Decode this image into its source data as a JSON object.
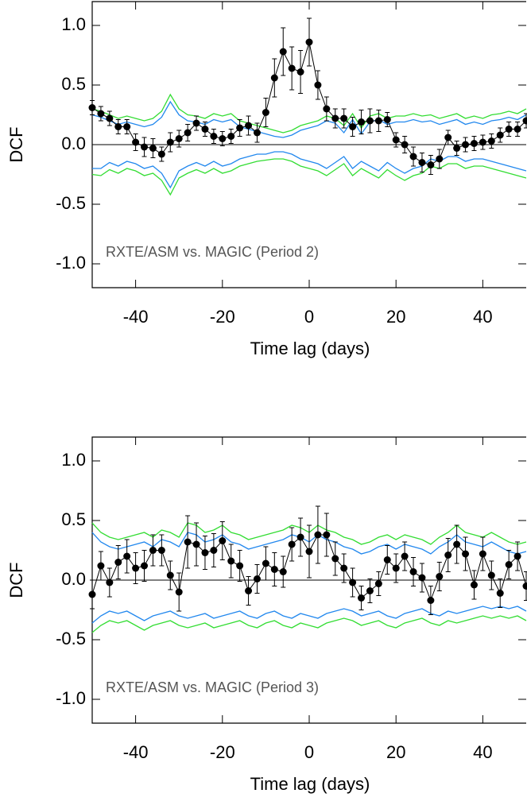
{
  "chart_data": [
    {
      "type": "line",
      "xlabel": "Time lag (days)",
      "ylabel": "DCF",
      "annotation": "RXTE/ASM vs. MAGIC (Period 2)",
      "xlim": [
        -50,
        50
      ],
      "ylim": [
        -1.2,
        1.2
      ],
      "xticks": [
        -40,
        -20,
        0,
        20,
        40
      ],
      "yticks": [
        {
          "value": -1,
          "label": "-1.0"
        },
        -0.5,
        {
          "value": 0,
          "label": "0.0"
        },
        0.5,
        {
          "value": 1,
          "label": "1.0"
        }
      ],
      "color": "#000000",
      "x": [
        -50,
        -48,
        -46,
        -44,
        -42,
        -40,
        -38,
        -36,
        -34,
        -32,
        -30,
        -28,
        -26,
        -24,
        -22,
        -20,
        -18,
        -16,
        -14,
        -12,
        -10,
        -8,
        -6,
        -4,
        -2,
        0,
        2,
        4,
        6,
        8,
        10,
        12,
        14,
        16,
        18,
        20,
        22,
        24,
        26,
        28,
        30,
        32,
        34,
        36,
        38,
        40,
        42,
        44,
        46,
        48,
        50
      ],
      "values": [
        0.31,
        0.26,
        0.22,
        0.15,
        0.15,
        0.02,
        -0.02,
        -0.03,
        -0.08,
        0.02,
        0.05,
        0.1,
        0.18,
        0.13,
        0.07,
        0.05,
        0.07,
        0.14,
        0.16,
        0.1,
        0.27,
        0.56,
        0.78,
        0.64,
        0.61,
        0.86,
        0.5,
        0.3,
        0.22,
        0.22,
        0.15,
        0.19,
        0.2,
        0.2,
        0.21,
        0.04,
        0.0,
        -0.1,
        -0.15,
        -0.17,
        -0.12,
        0.06,
        -0.03,
        0.0,
        0.01,
        0.02,
        0.03,
        0.08,
        0.13,
        0.13,
        0.2
      ],
      "errors": [
        0.06,
        0.06,
        0.06,
        0.06,
        0.06,
        0.07,
        0.08,
        0.08,
        0.06,
        0.08,
        0.07,
        0.07,
        0.06,
        0.06,
        0.06,
        0.06,
        0.06,
        0.07,
        0.08,
        0.08,
        0.12,
        0.16,
        0.2,
        0.18,
        0.18,
        0.2,
        0.12,
        0.1,
        0.08,
        0.08,
        0.08,
        0.1,
        0.1,
        0.09,
        0.06,
        0.06,
        0.07,
        0.08,
        0.08,
        0.08,
        0.08,
        0.06,
        0.06,
        0.06,
        0.06,
        0.06,
        0.06,
        0.06,
        0.06,
        0.06,
        0.06
      ],
      "bands": [
        {
          "color": "#33dd33",
          "values": [
            0.3,
            0.28,
            0.25,
            0.22,
            0.24,
            0.22,
            0.2,
            0.22,
            0.28,
            0.42,
            0.3,
            0.25,
            0.24,
            0.22,
            0.26,
            0.24,
            0.26,
            0.2,
            0.18,
            0.16,
            0.14,
            0.12,
            0.1,
            0.12,
            0.16,
            0.18,
            0.2,
            0.24,
            0.22,
            0.16,
            0.26,
            0.14,
            0.24,
            0.26,
            0.22,
            0.24,
            0.24,
            0.26,
            0.24,
            0.25,
            0.22,
            0.24,
            0.26,
            0.22,
            0.24,
            0.22,
            0.25,
            0.26,
            0.28,
            0.26,
            0.3
          ]
        },
        {
          "color": "#2288ee",
          "values": [
            0.25,
            0.23,
            0.2,
            0.17,
            0.19,
            0.17,
            0.15,
            0.17,
            0.23,
            0.36,
            0.25,
            0.2,
            0.19,
            0.17,
            0.21,
            0.19,
            0.21,
            0.15,
            0.13,
            0.11,
            0.09,
            0.07,
            0.06,
            0.08,
            0.12,
            0.14,
            0.16,
            0.2,
            0.18,
            0.1,
            0.21,
            0.09,
            0.19,
            0.21,
            0.17,
            0.19,
            0.19,
            0.21,
            0.19,
            0.2,
            0.17,
            0.19,
            0.21,
            0.17,
            0.19,
            0.17,
            0.2,
            0.21,
            0.23,
            0.21,
            0.25
          ]
        },
        {
          "color": "#2288ee",
          "values": [
            -0.2,
            -0.2,
            -0.15,
            -0.18,
            -0.14,
            -0.16,
            -0.2,
            -0.18,
            -0.24,
            -0.36,
            -0.22,
            -0.18,
            -0.15,
            -0.18,
            -0.14,
            -0.18,
            -0.16,
            -0.12,
            -0.1,
            -0.08,
            -0.08,
            -0.06,
            -0.06,
            -0.08,
            -0.12,
            -0.14,
            -0.16,
            -0.2,
            -0.15,
            -0.1,
            -0.2,
            -0.14,
            -0.18,
            -0.22,
            -0.15,
            -0.2,
            -0.24,
            -0.2,
            -0.18,
            -0.12,
            -0.14,
            -0.1,
            -0.1,
            -0.14,
            -0.12,
            -0.12,
            -0.14,
            -0.16,
            -0.18,
            -0.2,
            -0.22
          ]
        },
        {
          "color": "#33dd33",
          "values": [
            -0.25,
            -0.26,
            -0.21,
            -0.24,
            -0.2,
            -0.22,
            -0.26,
            -0.24,
            -0.3,
            -0.42,
            -0.28,
            -0.24,
            -0.21,
            -0.24,
            -0.2,
            -0.24,
            -0.22,
            -0.18,
            -0.16,
            -0.14,
            -0.13,
            -0.12,
            -0.12,
            -0.14,
            -0.18,
            -0.2,
            -0.22,
            -0.26,
            -0.21,
            -0.16,
            -0.26,
            -0.2,
            -0.24,
            -0.28,
            -0.21,
            -0.26,
            -0.3,
            -0.26,
            -0.24,
            -0.18,
            -0.2,
            -0.16,
            -0.16,
            -0.2,
            -0.18,
            -0.18,
            -0.2,
            -0.22,
            -0.24,
            -0.26,
            -0.28
          ]
        }
      ]
    },
    {
      "type": "line",
      "xlabel": "Time lag (days)",
      "ylabel": "DCF",
      "annotation": "RXTE/ASM vs. MAGIC (Period 3)",
      "xlim": [
        -50,
        50
      ],
      "ylim": [
        -1.2,
        1.2
      ],
      "xticks": [
        -40,
        -20,
        0,
        20,
        40
      ],
      "yticks": [
        {
          "value": -1,
          "label": "-1.0"
        },
        -0.5,
        {
          "value": 0,
          "label": "0.0"
        },
        0.5,
        {
          "value": 1,
          "label": "1.0"
        }
      ],
      "color": "#000000",
      "x": [
        -50,
        -48,
        -46,
        -44,
        -42,
        -40,
        -38,
        -36,
        -34,
        -32,
        -30,
        -28,
        -26,
        -24,
        -22,
        -20,
        -18,
        -16,
        -14,
        -12,
        -10,
        -8,
        -6,
        -4,
        -2,
        0,
        2,
        4,
        6,
        8,
        10,
        12,
        14,
        16,
        18,
        20,
        22,
        24,
        26,
        28,
        30,
        32,
        34,
        36,
        38,
        40,
        42,
        44,
        46,
        48,
        50
      ],
      "values": [
        -0.12,
        0.12,
        -0.02,
        0.15,
        0.2,
        0.1,
        0.12,
        0.25,
        0.25,
        0.04,
        -0.1,
        0.32,
        0.3,
        0.23,
        0.25,
        0.33,
        0.16,
        0.12,
        -0.09,
        0.01,
        0.14,
        0.09,
        0.07,
        0.3,
        0.36,
        0.24,
        0.38,
        0.38,
        0.18,
        0.1,
        -0.02,
        -0.15,
        -0.09,
        -0.03,
        0.17,
        0.1,
        0.2,
        0.07,
        0.02,
        -0.17,
        0.03,
        0.21,
        0.3,
        0.22,
        -0.04,
        0.22,
        0.04,
        -0.11,
        0.13,
        0.2,
        -0.05
      ],
      "errors": [
        0.12,
        0.12,
        0.12,
        0.14,
        0.14,
        0.13,
        0.13,
        0.13,
        0.13,
        0.12,
        0.16,
        0.22,
        0.18,
        0.14,
        0.14,
        0.16,
        0.14,
        0.13,
        0.12,
        0.12,
        0.14,
        0.14,
        0.13,
        0.14,
        0.16,
        0.22,
        0.24,
        0.18,
        0.14,
        0.12,
        0.12,
        0.1,
        0.1,
        0.1,
        0.12,
        0.12,
        0.12,
        0.12,
        0.12,
        0.12,
        0.12,
        0.14,
        0.16,
        0.14,
        0.12,
        0.14,
        0.12,
        0.12,
        0.12,
        0.12,
        0.12
      ],
      "bands": [
        {
          "color": "#33dd33",
          "values": [
            0.48,
            0.4,
            0.36,
            0.34,
            0.36,
            0.38,
            0.4,
            0.36,
            0.42,
            0.4,
            0.36,
            0.48,
            0.46,
            0.4,
            0.42,
            0.46,
            0.4,
            0.38,
            0.34,
            0.36,
            0.38,
            0.4,
            0.42,
            0.46,
            0.44,
            0.4,
            0.46,
            0.42,
            0.4,
            0.36,
            0.34,
            0.3,
            0.32,
            0.36,
            0.38,
            0.34,
            0.38,
            0.36,
            0.34,
            0.3,
            0.36,
            0.4,
            0.46,
            0.4,
            0.38,
            0.36,
            0.4,
            0.36,
            0.32,
            0.3,
            0.32
          ]
        },
        {
          "color": "#2288ee",
          "values": [
            0.4,
            0.32,
            0.28,
            0.26,
            0.28,
            0.3,
            0.32,
            0.28,
            0.34,
            0.32,
            0.28,
            0.4,
            0.38,
            0.32,
            0.34,
            0.38,
            0.32,
            0.3,
            0.26,
            0.28,
            0.3,
            0.32,
            0.34,
            0.38,
            0.36,
            0.32,
            0.38,
            0.34,
            0.32,
            0.28,
            0.26,
            0.22,
            0.24,
            0.28,
            0.3,
            0.26,
            0.3,
            0.28,
            0.26,
            0.22,
            0.28,
            0.32,
            0.38,
            0.32,
            0.3,
            0.28,
            0.32,
            0.28,
            0.24,
            0.22,
            0.24
          ]
        },
        {
          "color": "#2288ee",
          "values": [
            -0.36,
            -0.3,
            -0.26,
            -0.28,
            -0.26,
            -0.3,
            -0.34,
            -0.3,
            -0.28,
            -0.26,
            -0.3,
            -0.32,
            -0.3,
            -0.28,
            -0.32,
            -0.3,
            -0.28,
            -0.26,
            -0.3,
            -0.32,
            -0.28,
            -0.26,
            -0.3,
            -0.32,
            -0.28,
            -0.3,
            -0.32,
            -0.28,
            -0.26,
            -0.24,
            -0.26,
            -0.3,
            -0.28,
            -0.26,
            -0.3,
            -0.32,
            -0.28,
            -0.26,
            -0.24,
            -0.28,
            -0.3,
            -0.26,
            -0.28,
            -0.26,
            -0.24,
            -0.22,
            -0.24,
            -0.22,
            -0.24,
            -0.22,
            -0.26
          ]
        },
        {
          "color": "#33dd33",
          "values": [
            -0.44,
            -0.38,
            -0.34,
            -0.36,
            -0.34,
            -0.38,
            -0.42,
            -0.38,
            -0.36,
            -0.34,
            -0.38,
            -0.4,
            -0.38,
            -0.36,
            -0.4,
            -0.38,
            -0.36,
            -0.34,
            -0.38,
            -0.4,
            -0.36,
            -0.34,
            -0.38,
            -0.4,
            -0.36,
            -0.38,
            -0.4,
            -0.36,
            -0.34,
            -0.32,
            -0.34,
            -0.38,
            -0.36,
            -0.34,
            -0.38,
            -0.4,
            -0.36,
            -0.34,
            -0.32,
            -0.36,
            -0.38,
            -0.34,
            -0.36,
            -0.34,
            -0.32,
            -0.3,
            -0.32,
            -0.3,
            -0.32,
            -0.3,
            -0.34
          ]
        }
      ]
    }
  ]
}
